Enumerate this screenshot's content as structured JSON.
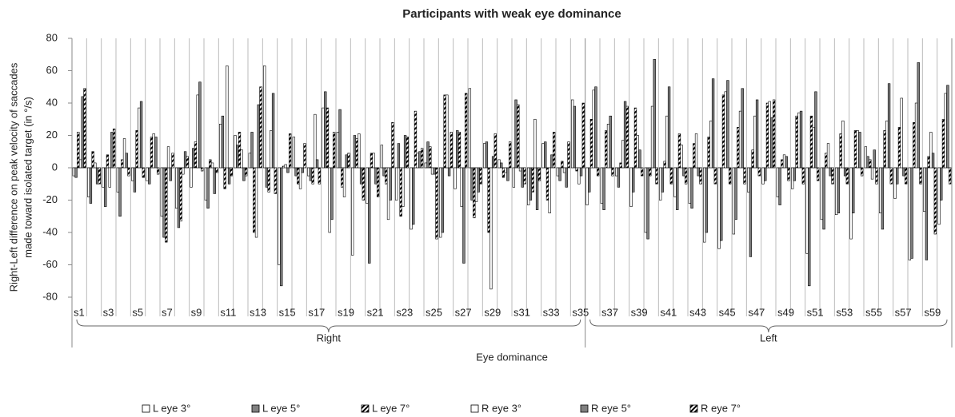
{
  "chart_data": {
    "type": "bar",
    "title": "Participants with weak eye dominance",
    "ylabel": [
      "Right-Left difference on peak velocity of saccades",
      "made toward isolated target (in °/s)"
    ],
    "xlabel": "Eye dominance",
    "groups": [
      "Right",
      "Left"
    ],
    "categories": [
      "s1",
      null,
      "s3",
      null,
      "s5",
      null,
      "s7",
      null,
      "s9",
      null,
      "s11",
      null,
      "s13",
      null,
      "s15",
      null,
      "s17",
      null,
      "s19",
      null,
      "s21",
      null,
      "s23",
      null,
      "s25",
      null,
      "s27",
      null,
      "s29",
      null,
      "s31",
      null,
      "s33",
      null,
      "s35",
      null,
      "s37",
      null,
      "s39",
      null,
      "s41",
      null,
      "s43",
      null,
      "s45",
      null,
      "s47",
      null,
      "s49",
      null,
      "s51",
      null,
      "s53",
      null,
      "s55",
      null,
      "s57",
      null,
      "s59",
      null
    ],
    "ylim": [
      -80,
      80
    ],
    "yticks": [
      -80,
      -60,
      -40,
      -20,
      0,
      20,
      40,
      60,
      80
    ],
    "legend": "bottom",
    "series": [
      {
        "name": "L eye 3°",
        "color": "#ffffff",
        "hatch": null,
        "values": [
          -5,
          -18,
          -12,
          -15,
          -8,
          -8,
          -30,
          -25,
          -12,
          -20,
          27,
          20,
          9,
          63,
          -60,
          19,
          -5,
          37,
          22,
          -54,
          -22,
          14,
          -20,
          -38,
          3,
          -43,
          -13,
          49,
          15,
          5,
          -12,
          -23,
          15,
          -5,
          42,
          -23,
          -22,
          -5,
          -24,
          -40,
          -20,
          -18,
          -22,
          -46,
          -50,
          -41,
          -15,
          -10,
          -18,
          -13,
          -53,
          -32,
          -29,
          -44,
          13,
          -28,
          -19,
          -57,
          -27,
          -35
        ]
      },
      {
        "name": "L eye 5°",
        "color": "#808080",
        "hatch": null,
        "values": [
          -6,
          -22,
          -24,
          -30,
          -15,
          -10,
          -43,
          -37,
          12,
          -25,
          32,
          14,
          22,
          -12,
          -73,
          -5,
          -8,
          47,
          36,
          20,
          -59,
          -5,
          15,
          -35,
          16,
          -40,
          23,
          -20,
          16,
          3,
          42,
          -20,
          16,
          -8,
          38,
          -15,
          -26,
          -12,
          -15,
          -44,
          -15,
          -26,
          -25,
          -40,
          -45,
          -32,
          -55,
          -8,
          -23,
          -8,
          -73,
          -38,
          -28,
          -28,
          7,
          -38,
          -10,
          -56,
          -57,
          -20
        ]
      },
      {
        "name": "L eye 7°",
        "color": "#ffffff",
        "hatch": "#000000",
        "values": [
          22,
          10,
          8,
          5,
          23,
          19,
          -46,
          -33,
          16,
          5,
          -13,
          22,
          -40,
          -15,
          1,
          -10,
          -10,
          37,
          -12,
          18,
          9,
          -10,
          -30,
          35,
          13,
          45,
          22,
          -31,
          -40,
          -6,
          39,
          -15,
          -20,
          4,
          -2,
          30,
          23,
          3,
          37,
          -5,
          4,
          21,
          15,
          19,
          45,
          25,
          11,
          40,
          5,
          32,
          32,
          9,
          21,
          23,
          5,
          23,
          25,
          28,
          7,
          30
        ]
      },
      {
        "name": "R eye 3°",
        "color": "#ffffff",
        "hatch": null,
        "values": [
          5,
          3,
          -12,
          18,
          37,
          21,
          13,
          -4,
          45,
          3,
          63,
          11,
          -43,
          23,
          2,
          -13,
          33,
          -40,
          -18,
          21,
          9,
          -32,
          -24,
          9,
          -4,
          45,
          -24,
          -21,
          -75,
          -3,
          -2,
          30,
          -28,
          -3,
          -10,
          48,
          27,
          17,
          20,
          38,
          32,
          14,
          21,
          29,
          47,
          35,
          32,
          41,
          8,
          34,
          25,
          15,
          29,
          23,
          -7,
          29,
          43,
          40,
          22,
          46
        ]
      },
      {
        "name": "R eye 5°",
        "color": "#808080",
        "hatch": null,
        "values": [
          44,
          -10,
          22,
          9,
          41,
          19,
          -8,
          10,
          53,
          -16,
          -10,
          -8,
          39,
          46,
          -3,
          -3,
          5,
          -32,
          8,
          -10,
          -10,
          -20,
          20,
          10,
          -4,
          -5,
          -59,
          -15,
          7,
          -8,
          -12,
          -26,
          8,
          -12,
          -5,
          50,
          32,
          41,
          11,
          67,
          50,
          -5,
          -5,
          55,
          54,
          49,
          42,
          31,
          7,
          35,
          47,
          -5,
          -5,
          22,
          11,
          52,
          -5,
          65,
          9,
          51
        ]
      },
      {
        "name": "R eye 7°",
        "color": "#000000",
        "hatch": "#ffffff",
        "values": [
          49,
          -10,
          24,
          -5,
          -6,
          -4,
          9,
          7,
          -2,
          -3,
          -5,
          -5,
          50,
          -16,
          21,
          15,
          -10,
          22,
          9,
          -20,
          -18,
          28,
          19,
          12,
          -44,
          22,
          46,
          -10,
          21,
          16,
          -10,
          -8,
          22,
          16,
          40,
          -5,
          -5,
          38,
          -5,
          -10,
          -10,
          -10,
          -10,
          -10,
          -10,
          -10,
          -5,
          42,
          -8,
          -10,
          -8,
          -10,
          -10,
          -5,
          -10,
          -10,
          -10,
          -10,
          -41,
          -10
        ]
      }
    ]
  }
}
